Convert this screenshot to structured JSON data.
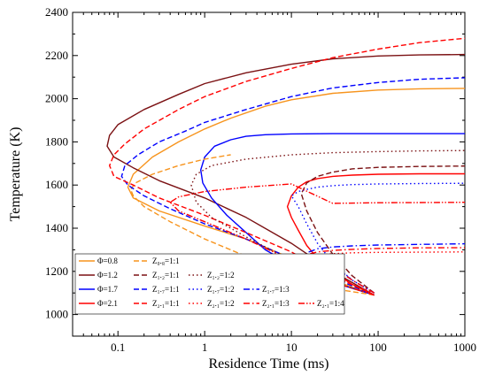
{
  "chart_data": {
    "type": "line",
    "xlabel": "Residence Time (ms)",
    "ylabel": "Temperature (K)",
    "xscale": "log",
    "xlim": [
      0.03,
      1000
    ],
    "ylim": [
      900,
      2400
    ],
    "x_tick_labels": [
      "0.1",
      "1",
      "10",
      "100",
      "1000"
    ],
    "x_tick_values": [
      0.1,
      1,
      10,
      100,
      1000
    ],
    "y_tick_labels": [
      "1000",
      "1200",
      "1400",
      "1600",
      "1800",
      "2000",
      "2200",
      "2400"
    ],
    "y_tick_values": [
      1000,
      1200,
      1400,
      1600,
      1800,
      2000,
      2200,
      2400
    ],
    "legend_position": "bottom-left",
    "series": [
      {
        "name": "Φ=0.8",
        "color": "#f7941d",
        "dash": "solid",
        "x": [
          90,
          30,
          10,
          3,
          1,
          0.3,
          0.15,
          0.13,
          0.15,
          0.25,
          0.5,
          1,
          2,
          5,
          10,
          30,
          100,
          300,
          1000
        ],
        "y": [
          1090,
          1160,
          1260,
          1350,
          1410,
          1480,
          1540,
          1590,
          1650,
          1730,
          1800,
          1860,
          1910,
          1965,
          1995,
          2025,
          2040,
          2046,
          2048
        ]
      },
      {
        "name": "Φ=1.2",
        "color": "#7b1113",
        "dash": "solid",
        "x": [
          90,
          30,
          10,
          3,
          1,
          0.3,
          0.15,
          0.09,
          0.075,
          0.08,
          0.1,
          0.2,
          0.5,
          1,
          3,
          10,
          30,
          100,
          300,
          1000
        ],
        "y": [
          1090,
          1200,
          1330,
          1450,
          1540,
          1620,
          1680,
          1730,
          1780,
          1830,
          1880,
          1950,
          2020,
          2070,
          2120,
          2160,
          2185,
          2198,
          2203,
          2205
        ]
      },
      {
        "name": "Φ=1.7",
        "color": "#0000ff",
        "dash": "solid",
        "x": [
          90,
          30,
          10,
          5,
          3,
          1.8,
          1.2,
          0.95,
          0.9,
          1,
          1.3,
          2,
          3,
          5,
          10,
          30,
          100,
          300,
          1000
        ],
        "y": [
          1090,
          1150,
          1230,
          1300,
          1380,
          1460,
          1540,
          1610,
          1670,
          1730,
          1780,
          1810,
          1826,
          1833,
          1837,
          1838,
          1838,
          1838,
          1838
        ]
      },
      {
        "name": "Φ=2.1",
        "color": "#ff0000",
        "dash": "solid",
        "x": [
          90,
          50,
          30,
          20,
          15,
          12,
          10,
          9,
          10,
          12,
          15,
          20,
          30,
          50,
          100,
          300,
          1000
        ],
        "y": [
          1090,
          1140,
          1200,
          1260,
          1320,
          1390,
          1450,
          1500,
          1550,
          1590,
          1615,
          1630,
          1640,
          1646,
          1650,
          1652,
          1652
        ]
      },
      {
        "name": "Z₀.₈=1:1",
        "color": "#f7941d",
        "dash": "dashed",
        "x": [
          90,
          30,
          10,
          3,
          1,
          0.4,
          0.2,
          0.15,
          0.14,
          0.16,
          0.25,
          0.5,
          1,
          2
        ],
        "y": [
          1090,
          1120,
          1180,
          1270,
          1350,
          1430,
          1500,
          1550,
          1580,
          1610,
          1650,
          1690,
          1720,
          1740
        ]
      },
      {
        "name": "Z₁.₂=1:1",
        "color": "#7b1113",
        "dash": "dashed",
        "x": [
          90,
          50,
          30,
          20,
          15,
          13,
          15,
          20,
          30,
          50,
          100,
          300,
          1000
        ],
        "y": [
          1100,
          1180,
          1280,
          1380,
          1480,
          1560,
          1610,
          1640,
          1660,
          1675,
          1682,
          1686,
          1688
        ]
      },
      {
        "name": "Z₁.₇=1:1",
        "color": "#0000ff",
        "dash": "dashed",
        "x": [
          90,
          30,
          10,
          3,
          1,
          0.4,
          0.2,
          0.13,
          0.11,
          0.12,
          0.17,
          0.3,
          0.6,
          1,
          3,
          10,
          30,
          100,
          300,
          1000
        ],
        "y": [
          1090,
          1170,
          1260,
          1350,
          1420,
          1490,
          1550,
          1600,
          1640,
          1690,
          1740,
          1800,
          1850,
          1890,
          1950,
          2010,
          2050,
          2075,
          2090,
          2097
        ]
      },
      {
        "name": "Z₂.₁=1:1",
        "color": "#ff0000",
        "dash": "dashed",
        "x": [
          90,
          30,
          10,
          3,
          1,
          0.3,
          0.15,
          0.09,
          0.08,
          0.09,
          0.12,
          0.2,
          0.5,
          1,
          3,
          10,
          30,
          100,
          300,
          1000
        ],
        "y": [
          1090,
          1180,
          1290,
          1380,
          1460,
          1540,
          1600,
          1640,
          1690,
          1740,
          1790,
          1860,
          1950,
          2010,
          2080,
          2140,
          2190,
          2230,
          2260,
          2280
        ]
      },
      {
        "name": "Z₁.₂=1:2",
        "color": "#7b1113",
        "dash": "dotted",
        "x": [
          90,
          30,
          10,
          3,
          1.2,
          0.8,
          0.7,
          0.8,
          1.2,
          3,
          10,
          30,
          100,
          300,
          1000
        ],
        "y": [
          1090,
          1150,
          1250,
          1360,
          1450,
          1520,
          1600,
          1650,
          1690,
          1720,
          1740,
          1750,
          1755,
          1758,
          1760
        ]
      },
      {
        "name": "Z₁.₇=1:2",
        "color": "#0000ff",
        "dash": "dotted",
        "x": [
          90,
          50,
          30,
          20,
          15,
          12,
          10,
          12,
          15,
          20,
          30,
          50,
          100,
          300,
          1000
        ],
        "y": [
          1100,
          1160,
          1240,
          1330,
          1420,
          1500,
          1550,
          1570,
          1580,
          1590,
          1597,
          1602,
          1605,
          1607,
          1608
        ]
      },
      {
        "name": "Z₂.₁=1:2",
        "color": "#ff0000",
        "dash": "dotted",
        "x": [
          90,
          50,
          30,
          20,
          15,
          20,
          30,
          50,
          100,
          300,
          1000
        ],
        "y": [
          1100,
          1140,
          1190,
          1230,
          1260,
          1275,
          1282,
          1286,
          1288,
          1289,
          1290
        ]
      },
      {
        "name": "Z₁.₇=1:3",
        "color": "#0000ff",
        "dash": "dashdot",
        "x": [
          90,
          50,
          30,
          20,
          16,
          20,
          30,
          50,
          100,
          300,
          1000
        ],
        "y": [
          1100,
          1160,
          1230,
          1270,
          1290,
          1305,
          1313,
          1318,
          1322,
          1325,
          1328
        ]
      },
      {
        "name": "Z₂.₁=1:3",
        "color": "#ff0000",
        "dash": "dashdot",
        "x": [
          90,
          50,
          30,
          20,
          16,
          20,
          30,
          50,
          100,
          300,
          1000
        ],
        "y": [
          1100,
          1160,
          1220,
          1260,
          1280,
          1290,
          1297,
          1302,
          1306,
          1309,
          1310
        ]
      },
      {
        "name": "Z₂.₁=1:4",
        "color": "#ff0000",
        "dash": "dashdotdot",
        "x": [
          90,
          30,
          10,
          3,
          1,
          0.5,
          0.4,
          0.5,
          1,
          3,
          10,
          30,
          100,
          300,
          1000
        ],
        "y": [
          1090,
          1150,
          1250,
          1350,
          1430,
          1480,
          1520,
          1545,
          1570,
          1590,
          1605,
          1515,
          1518,
          1519,
          1520
        ]
      }
    ],
    "legend_rows": [
      [
        "Φ=0.8",
        "Z₀.₈=1:1"
      ],
      [
        "Φ=1.2",
        "Z₁.₂=1:1",
        "Z₁.₂=1:2"
      ],
      [
        "Φ=1.7",
        "Z₁.₇=1:1",
        "Z₁.₇=1:2",
        "Z₁.₇=1:3"
      ],
      [
        "Φ=2.1",
        "Z₂.₁=1:1",
        "Z₂.₁=1:2",
        "Z₂.₁=1:3",
        "Z₂.₁=1:4"
      ]
    ]
  }
}
